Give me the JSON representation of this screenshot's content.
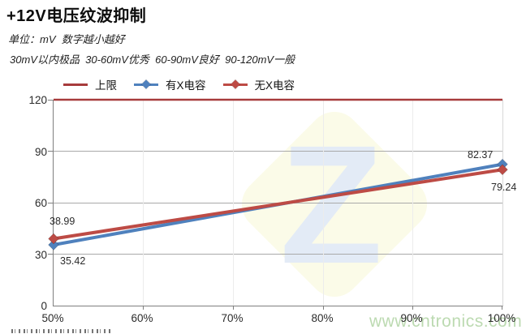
{
  "header": {
    "title": "+12V电压纹波抑制",
    "subtitle": "单位：mV  数字越小越好",
    "grading_note": "30mV以内极品  30-60mV优秀  60-90mV良好  90-120mV一般"
  },
  "watermark": {
    "url_text": "www.cntronics.com",
    "logo_letter": "Z",
    "logo_diamond_color": "#fbfbe8",
    "logo_letter_color": "#e3ebf6",
    "url_color": "#bcdab1"
  },
  "chart_data": {
    "type": "line",
    "title": "+12V电压纹波抑制",
    "unit": "mV",
    "x_ticks": [
      "50%",
      "60%",
      "70%",
      "80%",
      "90%",
      "100%"
    ],
    "y_ticks": [
      120,
      90,
      60,
      30,
      0
    ],
    "ylim": [
      0,
      120
    ],
    "xlabel": "",
    "ylabel": "mV",
    "grid": true,
    "legend_position": "top",
    "series": [
      {
        "name": "上限",
        "color": "#a73b3c",
        "marker": false,
        "stroke_width": 2.5,
        "points": [
          {
            "x": "50%",
            "y": 120
          },
          {
            "x": "100%",
            "y": 120
          }
        ]
      },
      {
        "name": "有X电容",
        "color": "#4f81bd",
        "marker": true,
        "stroke_width": 4,
        "points": [
          {
            "x": "50%",
            "y": 35.42,
            "label": "35.42"
          },
          {
            "x": "100%",
            "y": 82.37,
            "label": "82.37"
          }
        ]
      },
      {
        "name": "无X电容",
        "color": "#bd4b45",
        "marker": true,
        "stroke_width": 4,
        "points": [
          {
            "x": "50%",
            "y": 38.99,
            "label": "38.99"
          },
          {
            "x": "100%",
            "y": 79.24,
            "label": "79.24"
          }
        ]
      }
    ]
  }
}
